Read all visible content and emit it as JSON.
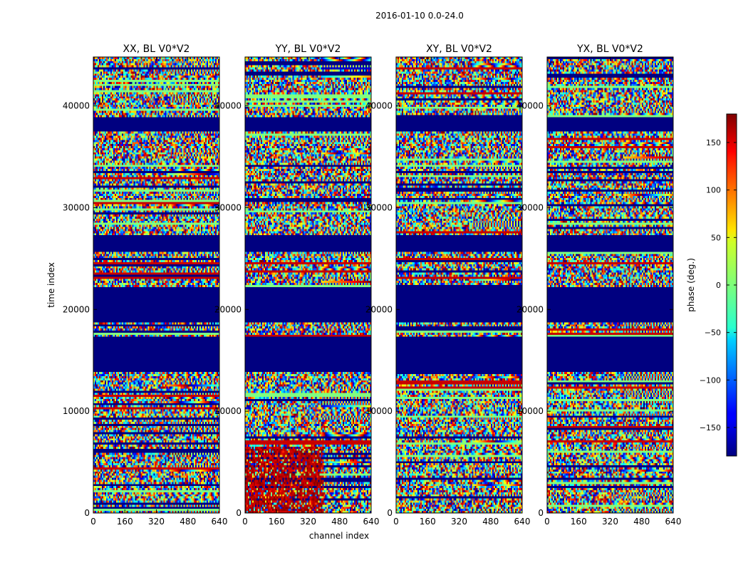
{
  "chart_data": {
    "type": "heatmap",
    "suptitle": "2016-01-10 0.0-24.0",
    "xlabel": "channel index",
    "ylabel": "time index",
    "xlim": [
      0,
      640
    ],
    "ylim": [
      0,
      44800
    ],
    "xticks": [
      0,
      160,
      320,
      480,
      640
    ],
    "yticks": [
      0,
      10000,
      20000,
      30000,
      40000
    ],
    "panels": [
      {
        "title": "XX, BL V0*V2"
      },
      {
        "title": "YY, BL V0*V2"
      },
      {
        "title": "XY, BL V0*V2"
      },
      {
        "title": "YX, BL V0*V2"
      }
    ],
    "colorbar": {
      "label": "phase (deg.)",
      "colormap": "jet",
      "vmin": -180,
      "vmax": 180,
      "ticks": [
        -150,
        -100,
        -50,
        0,
        50,
        100,
        150
      ],
      "tick_labels": [
        "−150",
        "−100",
        "−50",
        "0",
        "50",
        "100",
        "150"
      ]
    },
    "flagged_time_ranges": [
      [
        37600,
        39000
      ],
      [
        25800,
        27400
      ],
      [
        13900,
        17500
      ],
      [
        18800,
        22200
      ]
    ]
  }
}
